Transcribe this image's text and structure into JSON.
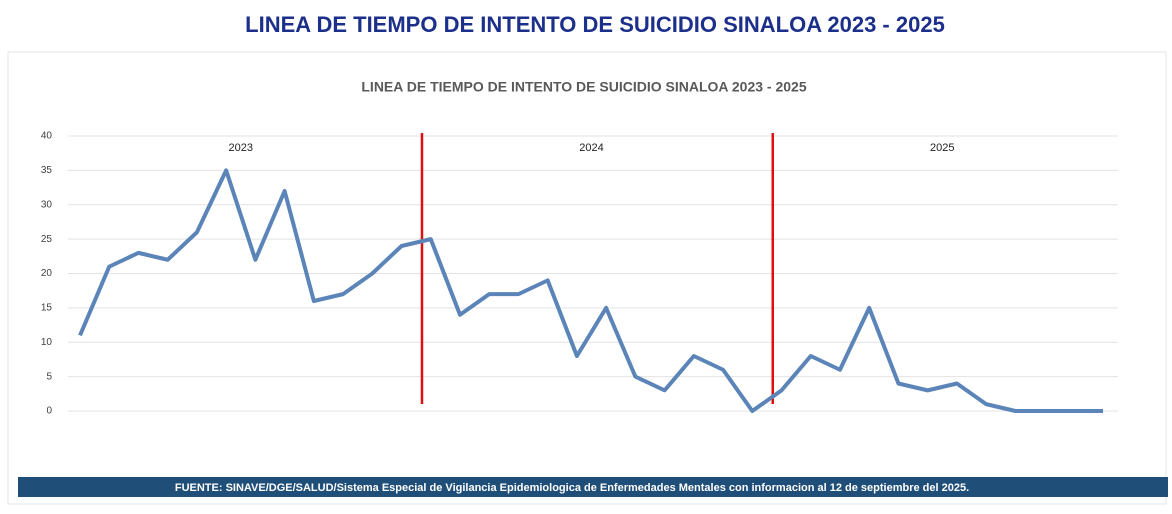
{
  "banner_title": "LINEA DE TIEMPO DE INTENTO DE SUICIDIO SINALOA  2023 - 2025",
  "chart_data": {
    "type": "line",
    "title": "LINEA DE TIEMPO DE INTENTO DE SUICIDIO SINALOA  2023 - 2025",
    "categories": [
      null,
      null,
      null,
      null,
      null,
      null,
      null,
      null,
      null,
      null,
      null,
      null,
      null,
      null,
      null,
      null,
      null,
      null,
      null,
      null,
      null,
      null,
      null,
      null,
      null,
      null,
      null,
      null,
      null,
      null,
      null,
      null,
      null,
      null,
      null,
      null
    ],
    "series": [
      {
        "name": "Intento de suicidio",
        "color": "#5b84b8",
        "values": [
          11,
          21,
          23,
          22,
          26,
          35,
          22,
          32,
          16,
          17,
          20,
          24,
          25,
          14,
          17,
          17,
          19,
          8,
          15,
          5,
          3,
          8,
          6,
          0,
          3,
          8,
          6,
          15,
          4,
          3,
          4,
          1,
          0,
          0,
          0,
          0
        ]
      }
    ],
    "annotations": [
      "2023",
      "2024",
      "2025"
    ],
    "divider_color": "#e01010",
    "ylim": [
      0,
      40
    ],
    "yticks": [
      0,
      5,
      10,
      15,
      20,
      25,
      30,
      35,
      40
    ],
    "grid": true
  },
  "source": "FUENTE: SINAVE/DGE/SALUD/Sistema Especial de Vigilancia Epidemiologica de Enfermedades Mentales con informacion al 12 de septiembre del 2025."
}
